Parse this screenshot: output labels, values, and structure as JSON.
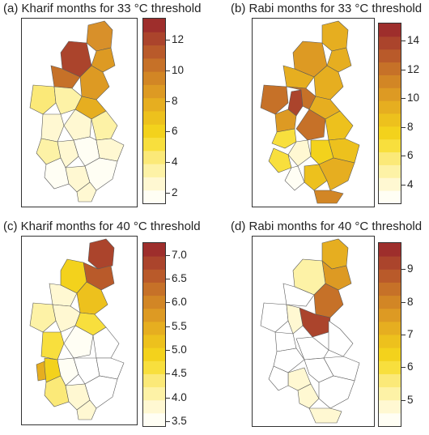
{
  "panels": [
    {
      "title": "(a) Kharif months for 33 °C threshold",
      "legend_ticks": [
        "12",
        "10",
        "8",
        "6",
        "4",
        "2"
      ],
      "tick_values": [
        12,
        10,
        8,
        6,
        4,
        2
      ],
      "scale_min": 1.3,
      "scale_max": 13.4,
      "colors": [
        "#fffef4",
        "#fff8d2",
        "#fdf2a6",
        "#fbe978",
        "#f8df3d",
        "#f3d21c",
        "#edc11d",
        "#e6ae20",
        "#dd9a23",
        "#d28625",
        "#c67128",
        "#b95a2a",
        "#ab442c",
        "#9e2e2c"
      ]
    },
    {
      "title": "(b) Rabi months for 33 °C threshold",
      "legend_ticks": [
        "14",
        "12",
        "10",
        "8",
        "6",
        "4"
      ],
      "tick_values": [
        14,
        12,
        10,
        8,
        6,
        4
      ],
      "scale_min": 2.7,
      "scale_max": 15.2,
      "colors": [
        "#fffef4",
        "#fff8d2",
        "#fdf2a6",
        "#fbe978",
        "#f8df3d",
        "#f3d21c",
        "#edc11d",
        "#e6ae20",
        "#dd9a23",
        "#d28625",
        "#c67128",
        "#b95a2a",
        "#ab442c",
        "#9e2e2c"
      ]
    },
    {
      "title": "(c) Kharif months for 40 °C threshold",
      "legend_ticks": [
        "7.0",
        "6.5",
        "6.0",
        "5.5",
        "5.0",
        "4.5",
        "4.0",
        "3.5"
      ],
      "tick_values": [
        7.0,
        6.5,
        6.0,
        5.5,
        5.0,
        4.5,
        4.0,
        3.5
      ],
      "scale_min": 3.4,
      "scale_max": 7.25,
      "colors": [
        "#fffef4",
        "#fff8d2",
        "#fdf2a6",
        "#fbe978",
        "#f8df3d",
        "#f3d21c",
        "#edc11d",
        "#e6ae20",
        "#dd9a23",
        "#d28625",
        "#c67128",
        "#b95a2a",
        "#ab442c",
        "#9e2e2c"
      ]
    },
    {
      "title": "(d) Rabi months for 40 °C threshold",
      "legend_ticks": [
        "9",
        "8",
        "7",
        "6",
        "5"
      ],
      "tick_values": [
        9,
        8,
        7,
        6,
        5
      ],
      "scale_min": 4.2,
      "scale_max": 9.8,
      "colors": [
        "#fffef4",
        "#fff8d2",
        "#fdf2a6",
        "#fbe978",
        "#f8df3d",
        "#f3d21c",
        "#edc11d",
        "#e6ae20",
        "#dd9a23",
        "#d28625",
        "#c67128",
        "#b95a2a",
        "#ab442c",
        "#9e2e2c"
      ]
    }
  ]
}
